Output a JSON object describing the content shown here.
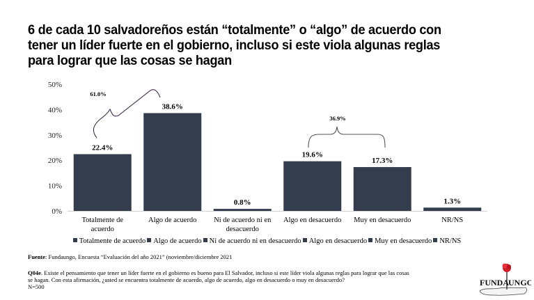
{
  "title_lines": [
    "6 de cada 10 salvadoreños están “totalmente” o “algo” de acuerdo con",
    "tener un líder fuerte en el gobierno, incluso si este viola algunas reglas",
    "para lograr que las cosas se hagan"
  ],
  "chart_data": {
    "type": "bar",
    "title": "6 de cada 10 salvadoreños están “totalmente” o “algo” de acuerdo con tener un líder fuerte en el gobierno, incluso si este viola algunas reglas para lograr que las cosas se hagan",
    "categories": [
      "Totalmente de acuerdo",
      "Algo de acuerdo",
      "Ni de acuerdo ni en desacuerdo",
      "Algo en desacuerdo",
      "Muy en desacuerdo",
      "NR/NS"
    ],
    "category_lines": [
      [
        "Totalmente de",
        "acuerdo"
      ],
      [
        "Algo de acuerdo"
      ],
      [
        "Ni de acuerdo ni en",
        "desacuerdo"
      ],
      [
        "Algo en desacuerdo"
      ],
      [
        "Muy en desacuerdo"
      ],
      [
        "NR/NS"
      ]
    ],
    "values": [
      22.4,
      38.6,
      0.8,
      19.6,
      17.3,
      1.3
    ],
    "data_labels": [
      "22.4%",
      "38.6%",
      "0.8%",
      "19.6%",
      "17.3%",
      "1.3%"
    ],
    "ylim": [
      0,
      50
    ],
    "yticks": [
      "0%",
      "10%",
      "20%",
      "30%",
      "40%",
      "50%"
    ],
    "xlabel": "",
    "ylabel": "",
    "grid": false,
    "legend_position": "bottom",
    "bar_color": "#333d4e",
    "annotations": [
      {
        "text": "61.0%",
        "groups": [
          "Totalmente de acuerdo",
          "Algo de acuerdo"
        ],
        "value": 61.0
      },
      {
        "text": "36.9%",
        "groups": [
          "Algo en desacuerdo",
          "Muy en desacuerdo"
        ],
        "value": 36.9
      }
    ]
  },
  "legend": [
    "Totalmente de acuerdo",
    "Algo de acuerdo",
    "Ni de acuerdo ni en desacuerdo",
    "Algo en desacuerdo",
    "Muy en desacuerdo",
    "NR/NS"
  ],
  "footer": {
    "source_label": "Fuente",
    "source_text": ": Fundaungo, Encuesta “Evaluación del año 2021” (noviembre/diciembre 2021",
    "question_code": "Q04e",
    "question_line1": ". Existe el pensamiento que tener un líder fuerte en el gobierno es bueno para El Salvador, incluso si este líder viola algunas reglas para lograr que las cosas",
    "question_line2": "se hagan. Con esta afirmación, ¿usted se encuentra totalmente de acuerdo, algo de acuerdo, algo en desacuerdo o muy en desacuerdo?",
    "sample": "N=500"
  },
  "logo": {
    "text": "FUNDAUNGO",
    "part1": "FUNDA",
    "part2": "UNGO"
  }
}
